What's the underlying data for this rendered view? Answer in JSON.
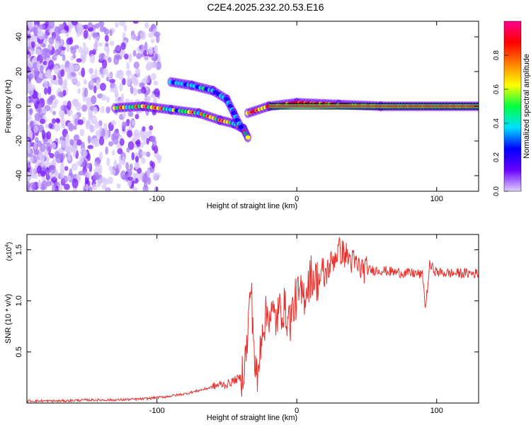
{
  "title": "C2E4.2025.232.20.53.E16",
  "chart_data": [
    {
      "type": "heatmap",
      "name": "spectrogram",
      "xlabel": "Height of straight line (km)",
      "ylabel": "Frequency (Hz)",
      "xlim": [
        -193,
        130
      ],
      "ylim": [
        -49,
        49
      ],
      "xticks": [
        -100,
        0,
        100
      ],
      "yticks": [
        -40,
        -20,
        0,
        20,
        40
      ],
      "colorbar": {
        "label": "Normalized spectral amplitude",
        "range": [
          0,
          1
        ],
        "ticks": [
          "0.0",
          "0.2",
          "0.4",
          "0.6",
          "0.8"
        ],
        "colors": [
          "#e0d0ff",
          "#6a00ff",
          "#0000ff",
          "#00e0ff",
          "#00ff40",
          "#ffff00",
          "#ff8000",
          "#ff0000",
          "#ff0090"
        ]
      },
      "features": [
        {
          "name": "main-branch",
          "points": [
            [
              -130,
              -1
            ],
            [
              -110,
              0
            ],
            [
              -90,
              -2
            ],
            [
              -70,
              -4
            ],
            [
              -55,
              -8
            ],
            [
              -45,
              -10
            ],
            [
              -38,
              -13
            ],
            [
              -35,
              -18
            ]
          ]
        },
        {
          "name": "upper-branch",
          "points": [
            [
              -90,
              14
            ],
            [
              -75,
              12
            ],
            [
              -60,
              9
            ],
            [
              -50,
              4
            ],
            [
              -45,
              -4
            ],
            [
              -40,
              -12
            ]
          ]
        },
        {
          "name": "flat-line",
          "points": [
            [
              -35,
              -4
            ],
            [
              -20,
              0
            ],
            [
              0,
              2
            ],
            [
              30,
              1
            ],
            [
              60,
              0
            ],
            [
              130,
              0
            ]
          ]
        }
      ]
    },
    {
      "type": "line",
      "name": "snr",
      "xlabel": "Height of straight line (km)",
      "ylabel": "SNR (10 * v/v)",
      "multiplier": "(x10",
      "multiplier_exp": "4",
      "xlim": [
        -193,
        130
      ],
      "ylim": [
        0,
        1.65
      ],
      "xticks": [
        -100,
        0,
        100
      ],
      "yticks": [
        0.5,
        1.0,
        1.5
      ],
      "ytick_labels": [
        "0.5",
        "1.0",
        "1.5"
      ],
      "color": "#e8302c",
      "series": [
        {
          "name": "SNR",
          "x": [
            -193,
            -170,
            -150,
            -130,
            -110,
            -95,
            -80,
            -65,
            -55,
            -50,
            -45,
            -40,
            -38,
            -36,
            -34,
            -33,
            -31,
            -30,
            -28,
            -25,
            -20,
            -15,
            -10,
            -5,
            0,
            5,
            10,
            15,
            20,
            25,
            30,
            35,
            40,
            45,
            50,
            60,
            70,
            80,
            85,
            90,
            92,
            95,
            100,
            110,
            120,
            130
          ],
          "values": [
            0.02,
            0.02,
            0.03,
            0.03,
            0.04,
            0.06,
            0.09,
            0.14,
            0.18,
            0.18,
            0.22,
            0.25,
            0.35,
            0.5,
            0.9,
            1.18,
            0.7,
            0.35,
            0.2,
            0.75,
            0.9,
            0.82,
            0.95,
            0.8,
            1.05,
            1.05,
            1.25,
            1.2,
            1.25,
            1.38,
            1.5,
            1.45,
            1.38,
            1.32,
            1.3,
            1.3,
            1.28,
            1.27,
            1.27,
            1.25,
            0.92,
            1.35,
            1.28,
            1.27,
            1.27,
            1.27
          ]
        }
      ]
    }
  ]
}
